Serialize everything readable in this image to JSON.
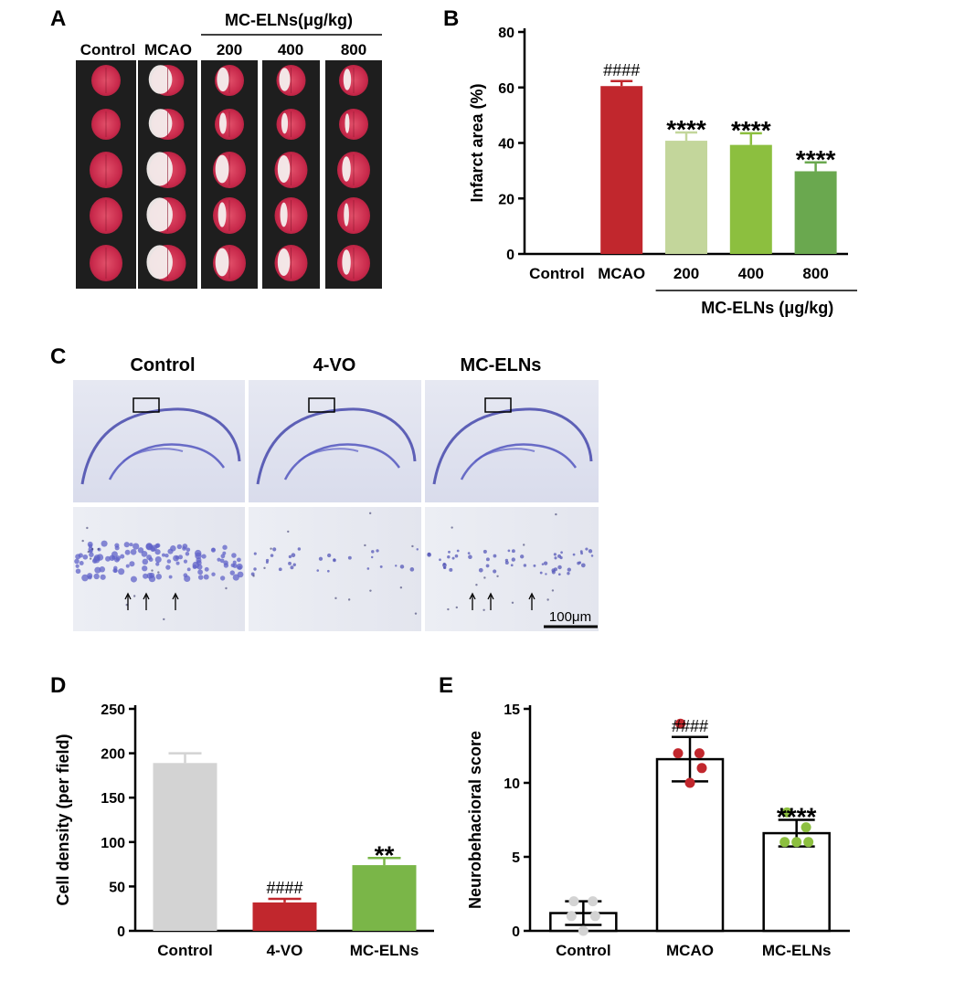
{
  "panels": {
    "A": {
      "letter": "A",
      "group_label": "MC-ELNs(μg/kg)",
      "columns": [
        "Control",
        "MCAO",
        "200",
        "400",
        "800"
      ]
    },
    "C": {
      "letter": "C",
      "columns": [
        "Control",
        "4-VO",
        "MC-ELNs"
      ],
      "scale_bar_label": "100μm"
    }
  },
  "chart_data": [
    {
      "id": "B",
      "letter": "B",
      "type": "bar",
      "ylabel": "Infarct area (%)",
      "ylim": [
        0,
        80
      ],
      "yticks": [
        0,
        20,
        40,
        60,
        80
      ],
      "categories": [
        "Control",
        "MCAO",
        "200",
        "400",
        "800"
      ],
      "values": [
        0,
        60.5,
        40.8,
        39.3,
        29.8
      ],
      "errors": [
        0,
        1.8,
        3.0,
        4.2,
        3.2
      ],
      "annotations": [
        "",
        "####",
        "****",
        "****",
        "****"
      ],
      "colors": [
        "#d0d0d0",
        "#c1272d",
        "#c3d69b",
        "#8cbf3f",
        "#6aa84f"
      ],
      "group_label": "MC-ELNs (μg/kg)"
    },
    {
      "id": "D",
      "letter": "D",
      "type": "bar",
      "ylabel": "Cell density (per field)",
      "ylim": [
        0,
        250
      ],
      "yticks": [
        0,
        50,
        100,
        150,
        200,
        250
      ],
      "categories": [
        "Control",
        "4-VO",
        "MC-ELNs"
      ],
      "values": [
        189,
        32,
        74
      ],
      "errors": [
        11,
        4,
        8
      ],
      "annotations": [
        "",
        "####",
        "**"
      ],
      "colors": [
        "#d3d3d3",
        "#c1272d",
        "#7ab648"
      ]
    },
    {
      "id": "E",
      "letter": "E",
      "type": "bar",
      "ylabel": "Neurobehacioral score",
      "ylim": [
        0,
        15
      ],
      "yticks": [
        0,
        5,
        10,
        15
      ],
      "categories": [
        "Control",
        "MCAO",
        "MC-ELNs"
      ],
      "values": [
        1.2,
        11.6,
        6.6
      ],
      "errors": [
        0.8,
        1.5,
        0.9
      ],
      "annotations": [
        "",
        "####",
        "****"
      ],
      "point_colors": [
        "#d3d3d3",
        "#c1272d",
        "#8cbf3f"
      ],
      "points": [
        [
          2,
          2,
          1,
          1,
          0
        ],
        [
          14,
          12,
          12,
          11,
          10
        ],
        [
          8,
          7,
          6,
          6,
          6
        ]
      ]
    }
  ]
}
